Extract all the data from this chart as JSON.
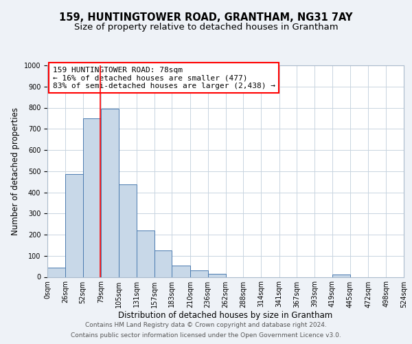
{
  "title": "159, HUNTINGTOWER ROAD, GRANTHAM, NG31 7AY",
  "subtitle": "Size of property relative to detached houses in Grantham",
  "xlabel": "Distribution of detached houses by size in Grantham",
  "ylabel": "Number of detached properties",
  "bar_edges": [
    0,
    26,
    52,
    79,
    105,
    131,
    157,
    183,
    210,
    236,
    262,
    288,
    314,
    341,
    367,
    393,
    419,
    445,
    472,
    498,
    524
  ],
  "bar_heights": [
    45,
    485,
    750,
    795,
    438,
    220,
    125,
    55,
    30,
    15,
    0,
    0,
    0,
    0,
    0,
    0,
    10,
    0,
    0,
    0
  ],
  "bar_color": "#c8d8e8",
  "bar_edge_color": "#4a7aaf",
  "property_size": 78,
  "annotation_text_line1": "159 HUNTINGTOWER ROAD: 78sqm",
  "annotation_text_line2": "← 16% of detached houses are smaller (477)",
  "annotation_text_line3": "83% of semi-detached houses are larger (2,438) →",
  "annotation_box_color": "white",
  "annotation_box_edge_color": "red",
  "vline_color": "red",
  "vline_x": 78,
  "ylim": [
    0,
    1000
  ],
  "yticks": [
    0,
    100,
    200,
    300,
    400,
    500,
    600,
    700,
    800,
    900,
    1000
  ],
  "xtick_labels": [
    "0sqm",
    "26sqm",
    "52sqm",
    "79sqm",
    "105sqm",
    "131sqm",
    "157sqm",
    "183sqm",
    "210sqm",
    "236sqm",
    "262sqm",
    "288sqm",
    "314sqm",
    "341sqm",
    "367sqm",
    "393sqm",
    "419sqm",
    "445sqm",
    "472sqm",
    "498sqm",
    "524sqm"
  ],
  "footer_line1": "Contains HM Land Registry data © Crown copyright and database right 2024.",
  "footer_line2": "Contains public sector information licensed under the Open Government Licence v3.0.",
  "bg_color": "#eef2f7",
  "plot_bg_color": "white",
  "grid_color": "#c8d4e0",
  "title_fontsize": 10.5,
  "subtitle_fontsize": 9.5,
  "axis_label_fontsize": 8.5,
  "tick_fontsize": 7,
  "annotation_fontsize": 8,
  "footer_fontsize": 6.5
}
